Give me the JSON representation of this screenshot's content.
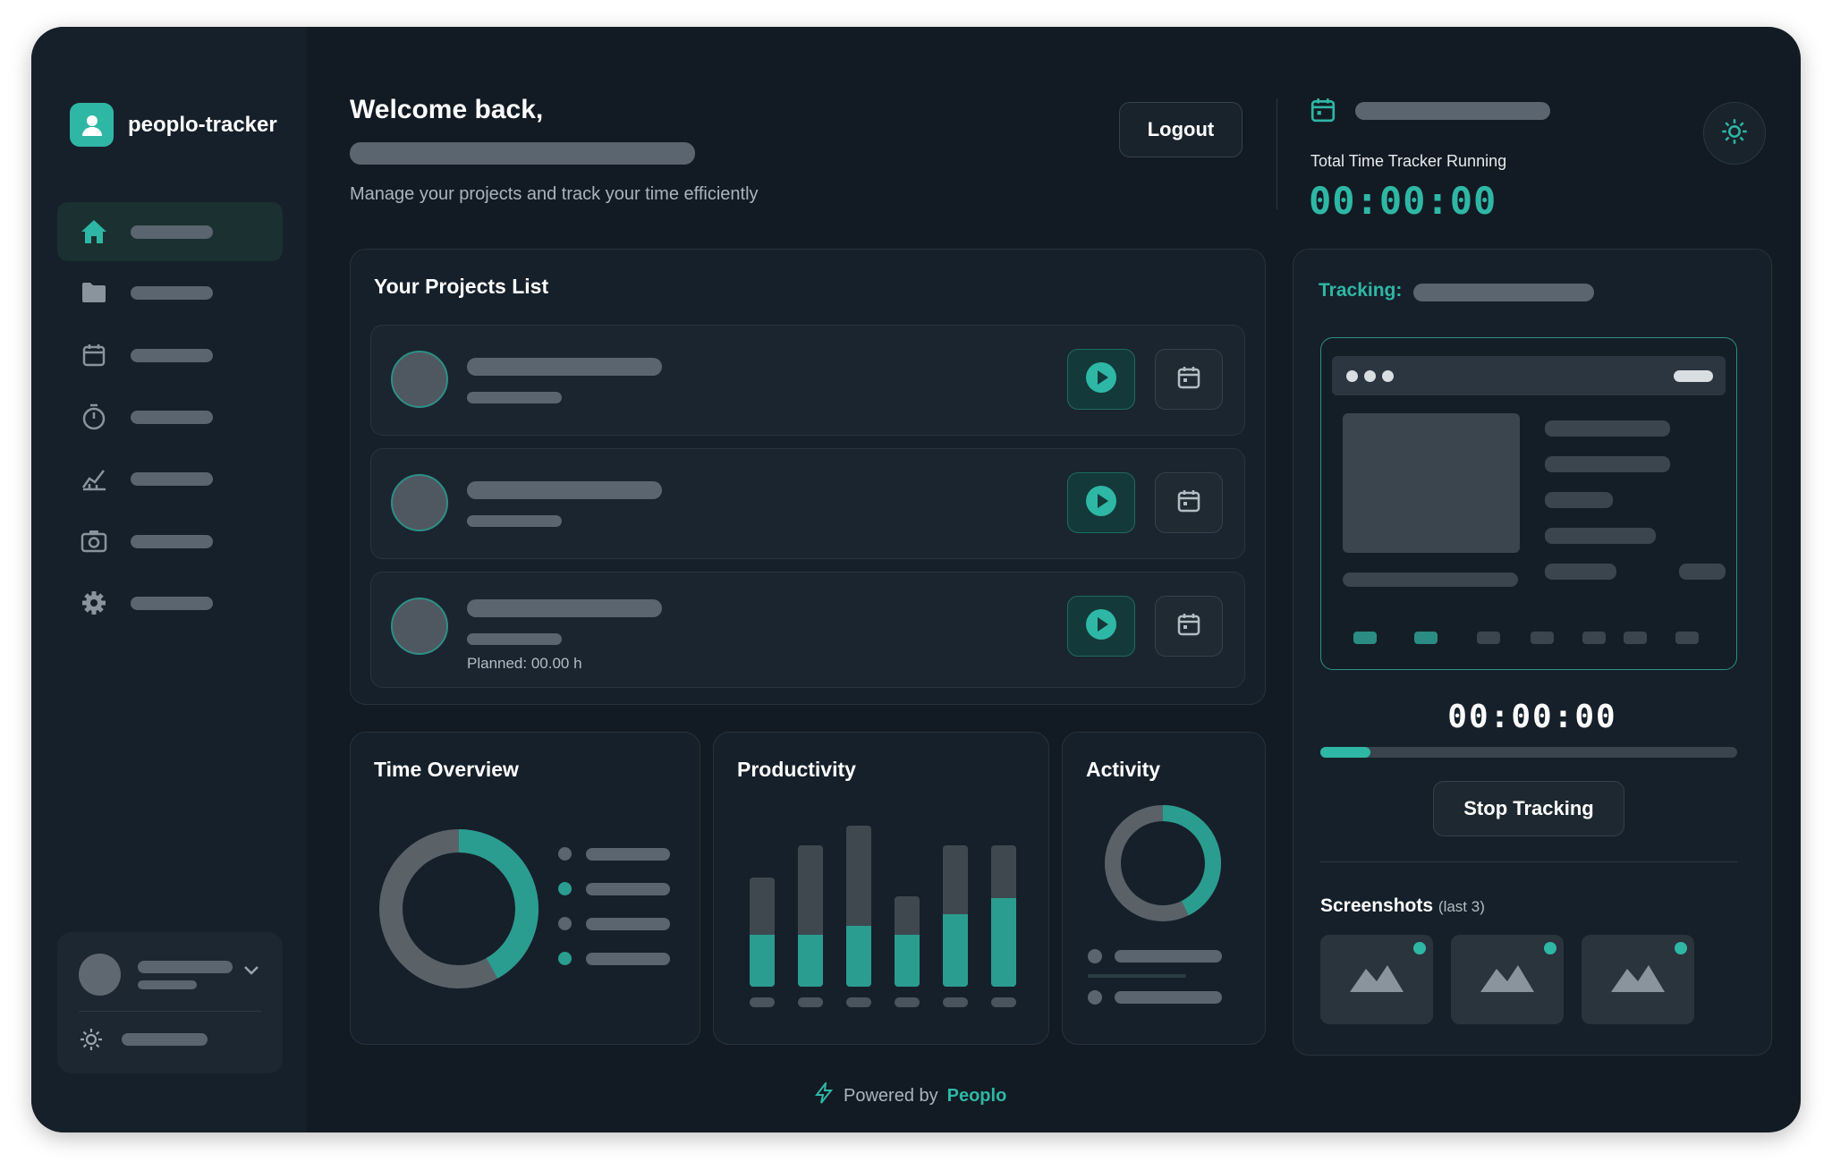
{
  "brand": {
    "name": "peoplo-tracker"
  },
  "header": {
    "welcome": "Welcome back,",
    "subtitle": "Manage your projects and track your time efficiently",
    "logout_label": "Logout"
  },
  "tracker_summary": {
    "label": "Total Time Tracker Running",
    "time": "00:00:00"
  },
  "projects": {
    "title": "Your Projects List",
    "rows": [
      {
        "planned": ""
      },
      {
        "planned": ""
      },
      {
        "planned": "Planned: 00.00 h"
      }
    ]
  },
  "cards": {
    "time_overview": {
      "title": "Time Overview"
    },
    "productivity": {
      "title": "Productivity",
      "bars": [
        0.68,
        0.88,
        1.0,
        0.56,
        0.88,
        0.88
      ],
      "fills": [
        0.32,
        0.32,
        0.38,
        0.32,
        0.45,
        0.55
      ]
    },
    "activity": {
      "title": "Activity"
    }
  },
  "tracking": {
    "label": "Tracking:",
    "time": "00:00:00",
    "progress": 0.12,
    "stop_label": "Stop Tracking",
    "screenshots_title": "Screenshots",
    "screenshots_sub": "(last 3)"
  },
  "footer": {
    "prefix": "Powered by",
    "link": "Peoplo"
  },
  "colors": {
    "accent": "#2fb7a5",
    "bg": "#121b23",
    "panel": "#16202a"
  }
}
